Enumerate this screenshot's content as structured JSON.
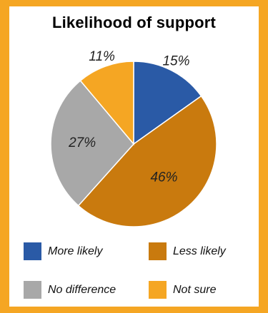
{
  "chart_data": {
    "type": "pie",
    "title": "Likelihood of support",
    "slices": [
      {
        "label": "More likely",
        "value": 15,
        "display": "15%",
        "color": "#2a5aa6"
      },
      {
        "label": "Less likely",
        "value": 46,
        "display": "46%",
        "color": "#c97a0e"
      },
      {
        "label": "No difference",
        "value": 27,
        "display": "27%",
        "color": "#a8a8a8"
      },
      {
        "label": "Not sure",
        "value": 11,
        "display": "11%",
        "color": "#f5a623"
      }
    ],
    "legend_position": "bottom"
  },
  "colors": {
    "frame": "#f5a623",
    "background": "#ffffff"
  }
}
